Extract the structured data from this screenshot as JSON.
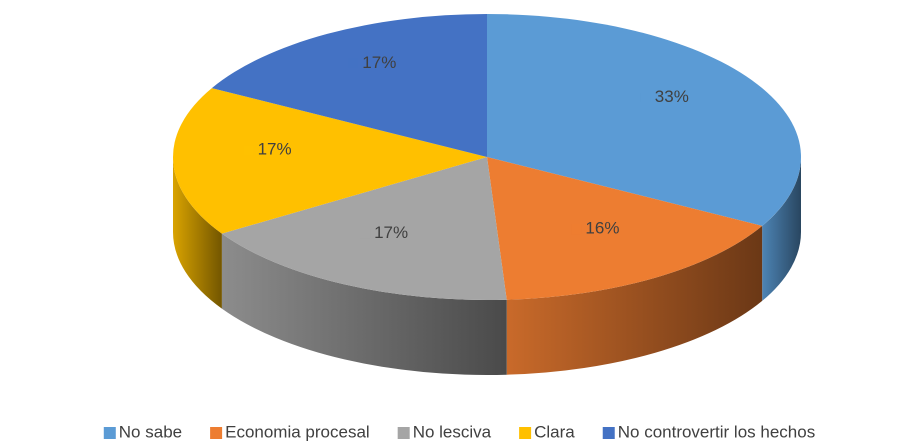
{
  "chart_data": {
    "type": "pie",
    "categories": [
      "No sabe",
      "Economia procesal",
      "No lesciva",
      "Clara",
      "No controvertir los hechos"
    ],
    "values": [
      33,
      16,
      17,
      17,
      17
    ],
    "value_labels": [
      "33%",
      "16%",
      "17%",
      "17%",
      "17%"
    ],
    "colors": [
      "#5b9bd5",
      "#ed7d31",
      "#a5a5a5",
      "#ffc000",
      "#4472c4"
    ],
    "legend": "bottom"
  }
}
